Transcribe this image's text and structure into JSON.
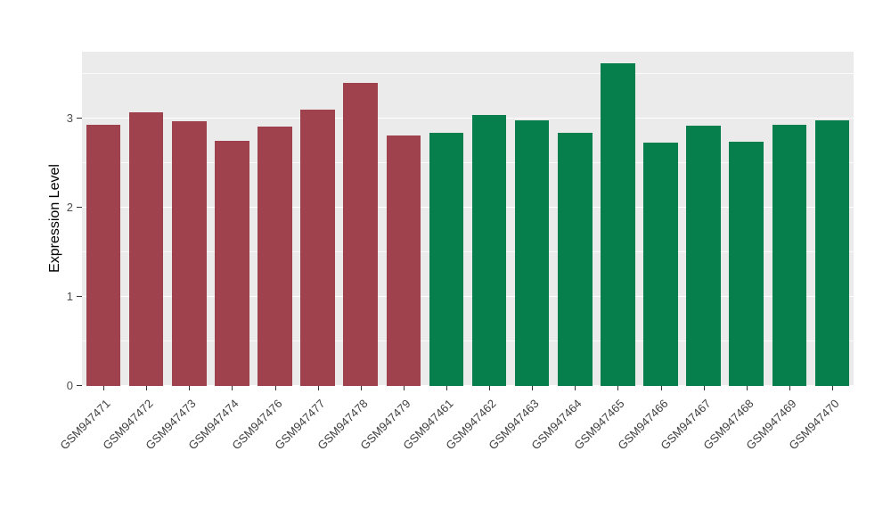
{
  "chart_data": {
    "type": "bar",
    "title": "",
    "xlabel": "",
    "ylabel": "Expression Level",
    "ylim": [
      0,
      3.75
    ],
    "yticks": [
      0,
      1,
      2,
      3
    ],
    "ytick_labels": [
      "0",
      "1",
      "2",
      "3"
    ],
    "minor_ticks": [
      0.5,
      1.5,
      2.5,
      3.5
    ],
    "grid": "on",
    "legend": "none",
    "panel_background": "#EBEBEB",
    "figure_background": "#FFFFFF",
    "group_colors": {
      "group1_red": "#A0424E",
      "group2_green": "#067F4C"
    },
    "categories": [
      "GSM947471",
      "GSM947472",
      "GSM947473",
      "GSM947474",
      "GSM947476",
      "GSM947477",
      "GSM947478",
      "GSM947479",
      "GSM947461",
      "GSM947462",
      "GSM947463",
      "GSM947464",
      "GSM947465",
      "GSM947466",
      "GSM947467",
      "GSM947468",
      "GSM947469",
      "GSM947470"
    ],
    "values": [
      2.93,
      3.07,
      2.97,
      2.75,
      2.91,
      3.1,
      3.4,
      2.81,
      2.84,
      3.04,
      2.98,
      2.84,
      3.62,
      2.73,
      2.92,
      2.74,
      2.93,
      2.98
    ],
    "colors": [
      "#A0424E",
      "#A0424E",
      "#A0424E",
      "#A0424E",
      "#A0424E",
      "#A0424E",
      "#A0424E",
      "#A0424E",
      "#067F4C",
      "#067F4C",
      "#067F4C",
      "#067F4C",
      "#067F4C",
      "#067F4C",
      "#067F4C",
      "#067F4C",
      "#067F4C",
      "#067F4C"
    ]
  }
}
